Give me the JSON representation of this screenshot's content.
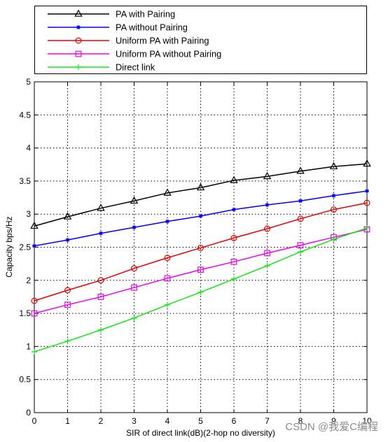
{
  "chart_data": {
    "type": "line",
    "xlabel": "SIR of direct link(dB)(2-hop no diversity)",
    "ylabel": "Capacity bps/Hz",
    "x": [
      0,
      1,
      2,
      3,
      4,
      5,
      6,
      7,
      8,
      9,
      10
    ],
    "xlim": [
      0,
      10
    ],
    "ylim": [
      0,
      5
    ],
    "xticks": [
      "0",
      "1",
      "2",
      "3",
      "4",
      "5",
      "6",
      "7",
      "8",
      "9",
      "10"
    ],
    "yticks": [
      "0",
      "0.5",
      "1",
      "1.5",
      "2",
      "2.5",
      "3",
      "3.5",
      "4",
      "4.5",
      "5"
    ],
    "grid": true,
    "legend_position": "top-outside",
    "series": [
      {
        "name": "PA with Pairing",
        "color": "#000000",
        "marker": "triangle",
        "values": [
          2.82,
          2.96,
          3.09,
          3.2,
          3.32,
          3.4,
          3.51,
          3.57,
          3.65,
          3.72,
          3.76
        ]
      },
      {
        "name": "PA without Pairing",
        "color": "#0000ff",
        "marker": "star",
        "values": [
          2.52,
          2.61,
          2.71,
          2.8,
          2.89,
          2.97,
          3.07,
          3.14,
          3.2,
          3.28,
          3.35
        ]
      },
      {
        "name": "Uniform PA with Pairing",
        "color": "#e60000",
        "marker": "circle",
        "values": [
          1.69,
          1.85,
          2.0,
          2.18,
          2.34,
          2.49,
          2.64,
          2.78,
          2.93,
          3.07,
          3.17
        ]
      },
      {
        "name": "Uniform PA without Pairing",
        "color": "#f000f0",
        "marker": "square",
        "values": [
          1.5,
          1.63,
          1.75,
          1.89,
          2.03,
          2.16,
          2.28,
          2.41,
          2.53,
          2.65,
          2.77
        ]
      },
      {
        "name": "Direct link",
        "color": "#11e611",
        "marker": "plus",
        "values": [
          0.92,
          1.08,
          1.25,
          1.43,
          1.63,
          1.82,
          2.02,
          2.22,
          2.43,
          2.62,
          2.79
        ]
      }
    ]
  },
  "watermark": "CSDN @我爱C编程"
}
